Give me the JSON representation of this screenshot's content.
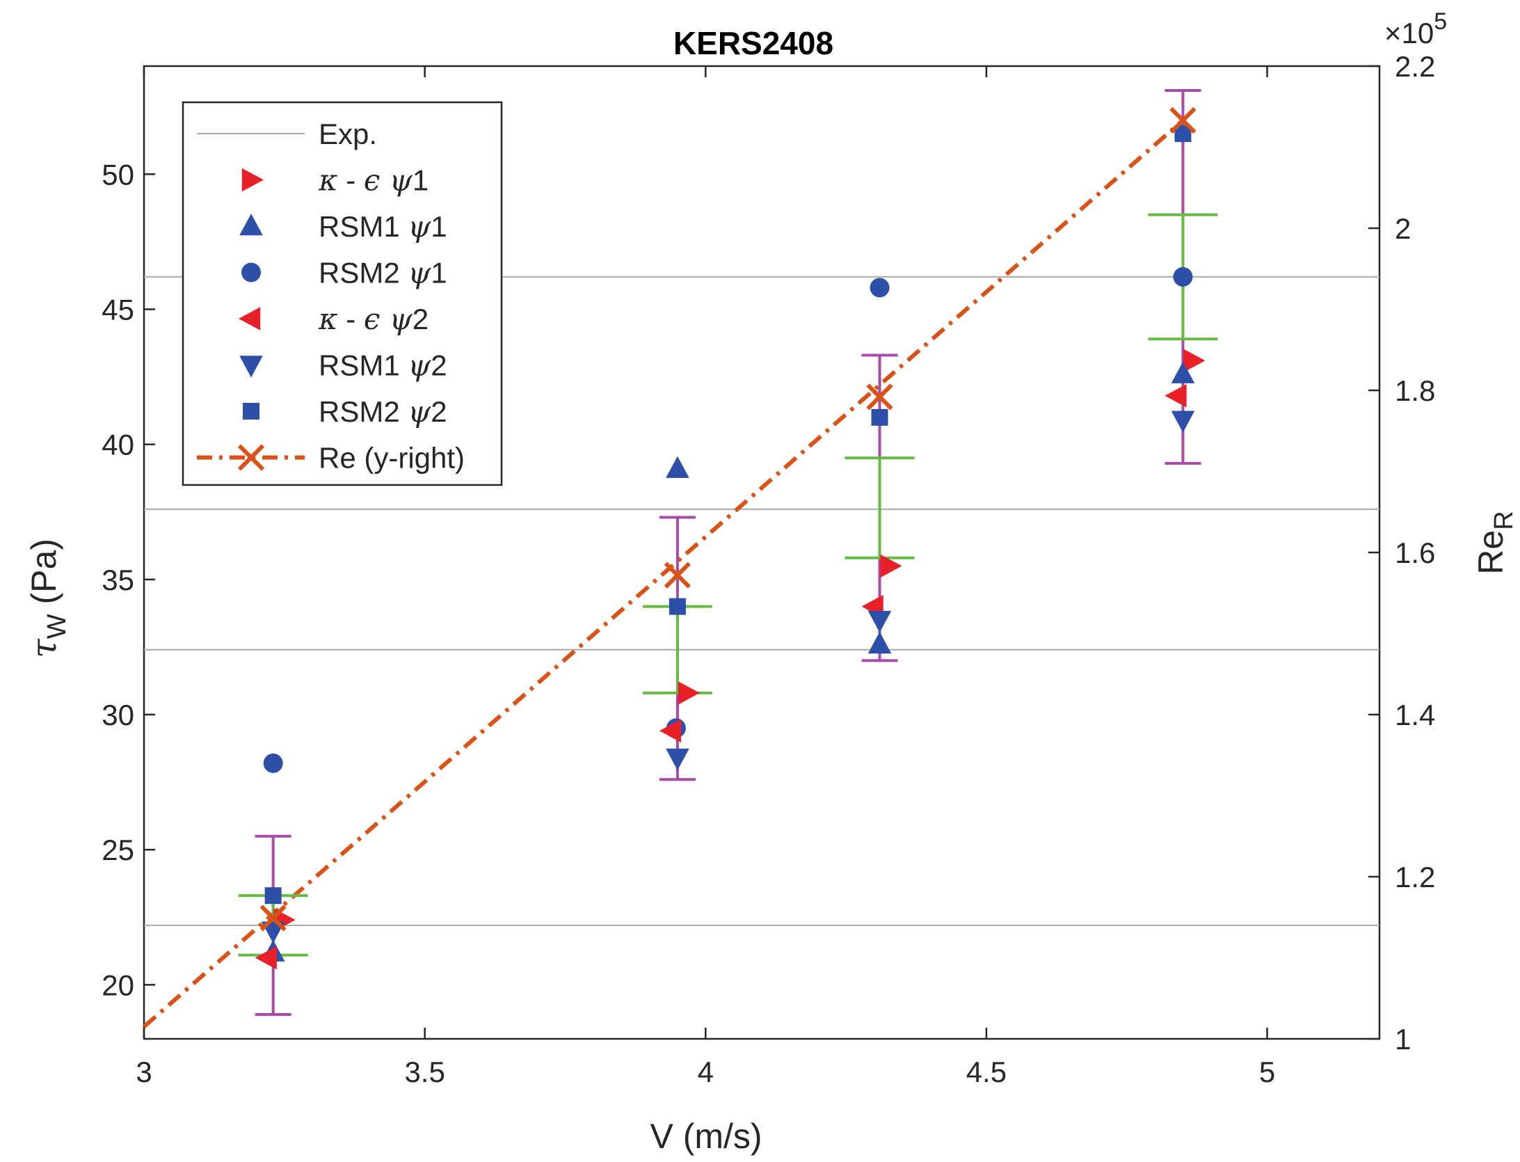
{
  "chart_data": {
    "type": "scatter",
    "title": "KERS2408",
    "xlabel": "V  (m/s)",
    "ylabel": {
      "sym": "τ",
      "sub": "W",
      "unit": "  (Pa)"
    },
    "y2label": {
      "base": "Re",
      "sub": "R"
    },
    "y2_exponent": {
      "prefix": "×10",
      "power": "5"
    },
    "xlim": [
      3,
      5.2
    ],
    "ylim": [
      18,
      54
    ],
    "y2lim": [
      1.0,
      2.2
    ],
    "xticks": [
      3,
      3.5,
      4,
      4.5,
      5
    ],
    "xtick_labels": [
      "3",
      "3.5",
      "4",
      "4.5",
      "5"
    ],
    "yticks": [
      20,
      25,
      30,
      35,
      40,
      45,
      50
    ],
    "ytick_labels": [
      "20",
      "25",
      "30",
      "35",
      "40",
      "45",
      "50"
    ],
    "y2ticks": [
      1.0,
      1.2,
      1.4,
      1.6,
      1.8,
      2.0,
      2.2
    ],
    "y2tick_labels": [
      "1",
      "1.2",
      "1.4",
      "1.6",
      "1.8",
      "2",
      "2.2"
    ],
    "grid": false,
    "legend_position": "top-left",
    "x_points": [
      3.23,
      3.95,
      4.31,
      4.85
    ],
    "exp": {
      "name": "Exp.",
      "values": [
        22.2,
        32.4,
        37.6,
        46.2
      ],
      "error_outer": [
        [
          18.9,
          25.5
        ],
        [
          27.6,
          37.3
        ],
        [
          32.0,
          43.3
        ],
        [
          39.3,
          53.1
        ]
      ],
      "error_inner": [
        [
          21.1,
          23.3
        ],
        [
          30.8,
          34.0
        ],
        [
          35.8,
          39.5
        ],
        [
          43.9,
          48.5
        ]
      ],
      "color": "#aaaaaa",
      "error_outer_color": "#a64ca6",
      "error_inner_color": "#66bb44"
    },
    "series": [
      {
        "name": "κ - ϵ ψ1",
        "marker": "triangle-right",
        "color": "#e8202a",
        "values": [
          22.4,
          30.8,
          35.5,
          43.1
        ]
      },
      {
        "name": "RSM1 ψ1",
        "marker": "triangle-up",
        "color": "#2e4fa8",
        "values": [
          21.2,
          39.1,
          32.6,
          42.6
        ]
      },
      {
        "name": "RSM2 ψ1",
        "marker": "circle",
        "color": "#2e4fa8",
        "values": [
          28.2,
          29.5,
          45.8,
          46.2
        ]
      },
      {
        "name": "κ - ϵ ψ2",
        "marker": "triangle-left",
        "color": "#e8202a",
        "values": [
          21.0,
          29.4,
          34.0,
          41.8
        ]
      },
      {
        "name": "RSM1 ψ2",
        "marker": "triangle-down",
        "color": "#2e4fa8",
        "values": [
          22.0,
          28.4,
          33.5,
          40.9
        ]
      },
      {
        "name": "RSM2 ψ2",
        "marker": "square",
        "color": "#2e4fa8",
        "values": [
          23.3,
          34.0,
          41.0,
          51.5
        ]
      }
    ],
    "re_series": {
      "name": "Re (y-right)",
      "axis": "right",
      "color": "#d95319",
      "x": [
        3.23,
        3.95,
        4.31,
        4.85
      ],
      "values": [
        1.149,
        1.572,
        1.792,
        2.133
      ],
      "fit_line_x": [
        3.0,
        4.85
      ],
      "fit_line_values": [
        1.015,
        2.133
      ]
    }
  },
  "legend": {
    "entries": [
      {
        "key": "exp",
        "parts": [
          {
            "text": "Exp.",
            "math": false
          }
        ]
      },
      {
        "key": "ke1",
        "parts": [
          {
            "text": "κ",
            "math": true
          },
          {
            "text": " - ",
            "math": false
          },
          {
            "text": "ϵ ψ",
            "math": true
          },
          {
            "text": "1",
            "math": false
          }
        ]
      },
      {
        "key": "rsm1a",
        "parts": [
          {
            "text": "RSM1 ",
            "math": false
          },
          {
            "text": "ψ",
            "math": true
          },
          {
            "text": "1",
            "math": false
          }
        ]
      },
      {
        "key": "rsm2a",
        "parts": [
          {
            "text": "RSM2 ",
            "math": false
          },
          {
            "text": "ψ",
            "math": true
          },
          {
            "text": "1",
            "math": false
          }
        ]
      },
      {
        "key": "ke2",
        "parts": [
          {
            "text": "κ",
            "math": true
          },
          {
            "text": " - ",
            "math": false
          },
          {
            "text": "ϵ ψ",
            "math": true
          },
          {
            "text": "2",
            "math": false
          }
        ]
      },
      {
        "key": "rsm1b",
        "parts": [
          {
            "text": "RSM1 ",
            "math": false
          },
          {
            "text": "ψ",
            "math": true
          },
          {
            "text": "2",
            "math": false
          }
        ]
      },
      {
        "key": "rsm2b",
        "parts": [
          {
            "text": "RSM2 ",
            "math": false
          },
          {
            "text": "ψ",
            "math": true
          },
          {
            "text": "2",
            "math": false
          }
        ]
      },
      {
        "key": "re",
        "parts": [
          {
            "text": "Re (y-right)",
            "math": false
          }
        ]
      }
    ]
  }
}
